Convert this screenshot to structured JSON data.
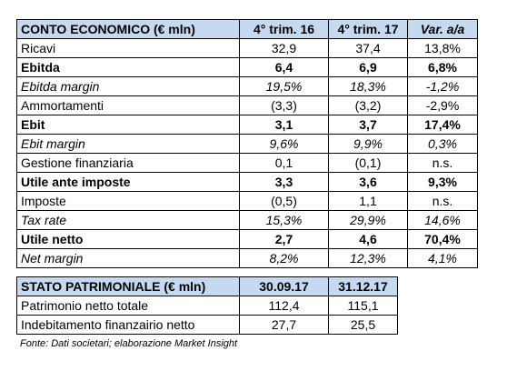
{
  "income_statement": {
    "headers": [
      "CONTO ECONOMICO (€ mln)",
      "4° trim. 16",
      "4° trim. 17",
      "Var. a/a"
    ],
    "rows": [
      {
        "label": "Ricavi",
        "q4_16": "32,9",
        "q4_17": "37,4",
        "var": "13,8%",
        "style": "normal"
      },
      {
        "label": "Ebitda",
        "q4_16": "6,4",
        "q4_17": "6,9",
        "var": "6,8%",
        "style": "bold"
      },
      {
        "label": "Ebitda margin",
        "q4_16": "19,5%",
        "q4_17": "18,3%",
        "var": "-1,2%",
        "style": "italic"
      },
      {
        "label": "Ammortamenti",
        "q4_16": "(3,3)",
        "q4_17": "(3,2)",
        "var": "-2,9%",
        "style": "normal"
      },
      {
        "label": "Ebit",
        "q4_16": "3,1",
        "q4_17": "3,7",
        "var": "17,4%",
        "style": "bold"
      },
      {
        "label": "Ebit margin",
        "q4_16": "9,6%",
        "q4_17": "9,9%",
        "var": "0,3%",
        "style": "italic"
      },
      {
        "label": "Gestione finanziaria",
        "q4_16": "0,1",
        "q4_17": "(0,1)",
        "var": "n.s.",
        "style": "normal"
      },
      {
        "label": "Utile ante imposte",
        "q4_16": "3,3",
        "q4_17": "3,6",
        "var": "9,3%",
        "style": "bold"
      },
      {
        "label": "Imposte",
        "q4_16": "(0,5)",
        "q4_17": "1,1",
        "var": "n.s.",
        "style": "normal"
      },
      {
        "label": "Tax rate",
        "q4_16": "15,3%",
        "q4_17": "29,9%",
        "var": "14,6%",
        "style": "italic"
      },
      {
        "label": "Utile netto",
        "q4_16": "2,7",
        "q4_17": "4,6",
        "var": "70,4%",
        "style": "bold"
      },
      {
        "label": "Net margin",
        "q4_16": "8,2%",
        "q4_17": "12,3%",
        "var": "4,1%",
        "style": "italic"
      }
    ]
  },
  "balance_sheet": {
    "headers": [
      "STATO PATRIMONIALE (€ mln)",
      "30.09.17",
      "31.12.17"
    ],
    "rows": [
      {
        "label": "Patrimonio netto totale",
        "d1": "112,4",
        "d2": "115,1"
      },
      {
        "label": "Indebitamento finanzairio netto",
        "d1": "27,7",
        "d2": "25,5"
      }
    ]
  },
  "source_note": "Fonte: Dati societari; elaborazione Market Insight",
  "colors": {
    "header_fill": "#c5d9f1",
    "border": "#000000",
    "text": "#000000"
  }
}
